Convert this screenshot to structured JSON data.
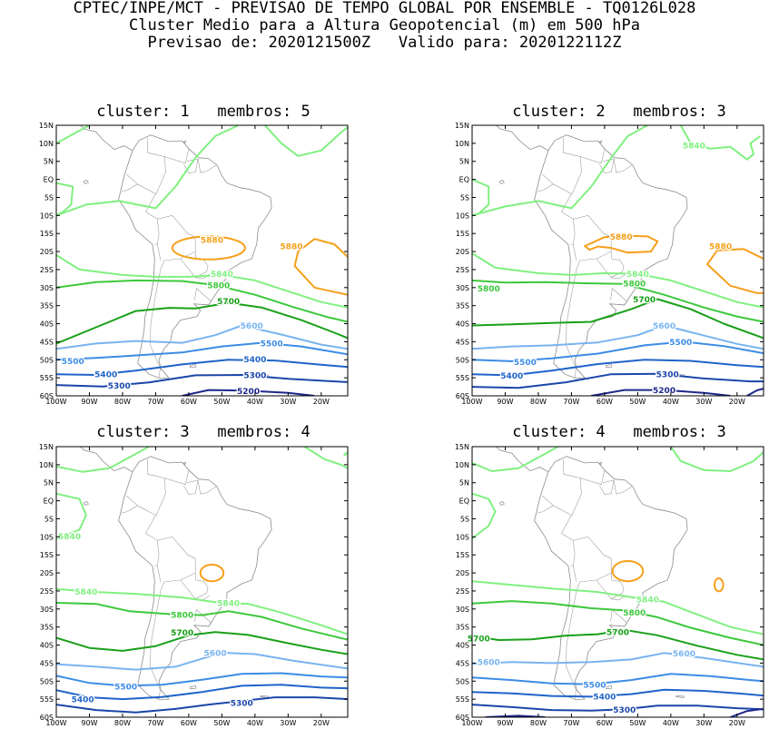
{
  "header": {
    "line1": "CPTEC/INPE/MCT - PREVISAO DE TEMPO GLOBAL POR ENSEMBLE - TQ0126L028",
    "line2": "Cluster Medio para a Altura Geopotencial (m) em 500 hPa",
    "line3": "Previsao de: 2020121500Z   Valido para: 2020122112Z"
  },
  "axes": {
    "lat_ticks": [
      "15N",
      "10N",
      "5N",
      "EQ",
      "5S",
      "10S",
      "15S",
      "20S",
      "25S",
      "30S",
      "35S",
      "40S",
      "45S",
      "50S",
      "55S",
      "60S"
    ],
    "lon_ticks": [
      "100W",
      "90W",
      "80W",
      "70W",
      "60W",
      "50W",
      "40W",
      "30W",
      "20W"
    ]
  },
  "contour_colors": {
    "5880": "#f5a01a",
    "5840": "#80f080",
    "5800": "#3cc83c",
    "5700": "#18a018",
    "5600": "#78b4f0",
    "5500": "#3c8ce6",
    "5400": "#1e64c8",
    "5300": "#1a46aa",
    "5200": "#1e288c"
  },
  "panels": [
    {
      "title": "cluster: 1   membros: 5",
      "labels": [
        {
          "text": "5880",
          "lon": -53,
          "lat": -16.7,
          "color": "#f5a01a"
        },
        {
          "text": "5880",
          "lon": -29,
          "lat": -18.5,
          "color": "#f5a01a"
        },
        {
          "text": "5840",
          "lon": -50,
          "lat": -26.2,
          "color": "#80f080"
        },
        {
          "text": "5800",
          "lon": -51,
          "lat": -29.3,
          "color": "#3cc83c"
        },
        {
          "text": "5700",
          "lon": -48,
          "lat": -33.7,
          "color": "#18a018"
        },
        {
          "text": "5600",
          "lon": -41,
          "lat": -40.5,
          "color": "#78b4f0"
        },
        {
          "text": "5500",
          "lon": -35,
          "lat": -45.4,
          "color": "#3c8ce6"
        },
        {
          "text": "5500",
          "lon": -95,
          "lat": -50.3,
          "color": "#3c8ce6"
        },
        {
          "text": "5400",
          "lon": -40,
          "lat": -49.8,
          "color": "#1e64c8"
        },
        {
          "text": "5400",
          "lon": -85,
          "lat": -53.9,
          "color": "#1e64c8"
        },
        {
          "text": "5300",
          "lon": -40,
          "lat": -54.2,
          "color": "#1a46aa"
        },
        {
          "text": "5300",
          "lon": -81,
          "lat": -57.1,
          "color": "#1a46aa"
        },
        {
          "text": "5200",
          "lon": -42,
          "lat": -58.6,
          "color": "#1e288c"
        }
      ]
    },
    {
      "title": "cluster: 2   membros: 3",
      "labels": [
        {
          "text": "5840",
          "lon": -33,
          "lat": 9.5,
          "color": "#80f080"
        },
        {
          "text": "5880",
          "lon": -55,
          "lat": -15.8,
          "color": "#f5a01a"
        },
        {
          "text": "5880",
          "lon": -25,
          "lat": -18.5,
          "color": "#f5a01a"
        },
        {
          "text": "5840",
          "lon": -50,
          "lat": -26.2,
          "color": "#80f080"
        },
        {
          "text": "5800",
          "lon": -51,
          "lat": -28.8,
          "color": "#3cc83c"
        },
        {
          "text": "5800",
          "lon": -95,
          "lat": -30.2,
          "color": "#3cc83c"
        },
        {
          "text": "5700",
          "lon": -48,
          "lat": -33.2,
          "color": "#18a018"
        },
        {
          "text": "5600",
          "lon": -42,
          "lat": -40.5,
          "color": "#78b4f0"
        },
        {
          "text": "5500",
          "lon": -37,
          "lat": -45,
          "color": "#3c8ce6"
        },
        {
          "text": "5500",
          "lon": -84,
          "lat": -50.5,
          "color": "#3c8ce6"
        },
        {
          "text": "5400",
          "lon": -88,
          "lat": -54.3,
          "color": "#1e64c8"
        },
        {
          "text": "5300",
          "lon": -41,
          "lat": -53.9,
          "color": "#1a46aa"
        },
        {
          "text": "5200",
          "lon": -42,
          "lat": -58.4,
          "color": "#1e288c"
        }
      ]
    },
    {
      "title": "cluster: 3   membros: 4",
      "labels": [
        {
          "text": "5840",
          "lon": -96,
          "lat": -9.8,
          "color": "#80f080"
        },
        {
          "text": "5840",
          "lon": -91,
          "lat": -25.2,
          "color": "#80f080"
        },
        {
          "text": "5840",
          "lon": -48,
          "lat": -28.3,
          "color": "#80f080"
        },
        {
          "text": "5800",
          "lon": -62,
          "lat": -31.6,
          "color": "#3cc83c"
        },
        {
          "text": "5700",
          "lon": -62,
          "lat": -36.5,
          "color": "#18a018"
        },
        {
          "text": "5600",
          "lon": -52,
          "lat": -42.1,
          "color": "#78b4f0"
        },
        {
          "text": "5500",
          "lon": -79,
          "lat": -51.4,
          "color": "#3c8ce6"
        },
        {
          "text": "5400",
          "lon": -92,
          "lat": -55,
          "color": "#1e64c8"
        },
        {
          "text": "5300",
          "lon": -44,
          "lat": -56,
          "color": "#1a46aa"
        }
      ]
    },
    {
      "title": "cluster: 4   membros: 3",
      "labels": [
        {
          "text": "5840",
          "lon": -47,
          "lat": -27.3,
          "color": "#80f080"
        },
        {
          "text": "5800",
          "lon": -51,
          "lat": -30.9,
          "color": "#3cc83c"
        },
        {
          "text": "5700",
          "lon": -56,
          "lat": -36.3,
          "color": "#18a018"
        },
        {
          "text": "5700",
          "lon": -98,
          "lat": -38.1,
          "color": "#18a018"
        },
        {
          "text": "5600",
          "lon": -36,
          "lat": -42.2,
          "color": "#78b4f0"
        },
        {
          "text": "5600",
          "lon": -95,
          "lat": -44.6,
          "color": "#78b4f0"
        },
        {
          "text": "5500",
          "lon": -63,
          "lat": -50.9,
          "color": "#3c8ce6"
        },
        {
          "text": "5400",
          "lon": -60,
          "lat": -54.2,
          "color": "#1e64c8"
        },
        {
          "text": "5300",
          "lon": -54,
          "lat": -57.8,
          "color": "#1a46aa"
        }
      ]
    }
  ]
}
